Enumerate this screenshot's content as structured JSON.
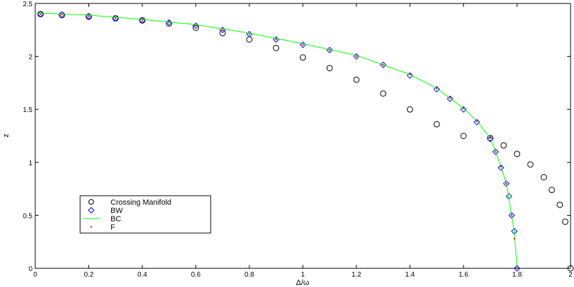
{
  "chart_data": {
    "type": "scatter",
    "xlabel": "Δ/ω",
    "ylabel": "z",
    "xlim": [
      0,
      2
    ],
    "ylim": [
      0,
      2.5
    ],
    "xticks": [
      "0",
      "0.2",
      "0.4",
      "0.6",
      "0.8",
      "1",
      "1.2",
      "1.4",
      "1.6",
      "1.8",
      "2"
    ],
    "yticks": [
      "0",
      "0.5",
      "1",
      "1.5",
      "2",
      "2.5"
    ],
    "legend_position": "bottom-left",
    "series": [
      {
        "name": "Crossing Manifold",
        "marker": "circle",
        "color": "#000000",
        "x": [
          0.02,
          0.1,
          0.2,
          0.3,
          0.4,
          0.5,
          0.6,
          0.7,
          0.8,
          0.9,
          1.0,
          1.1,
          1.2,
          1.3,
          1.4,
          1.5,
          1.6,
          1.7,
          1.75,
          1.8,
          1.85,
          1.9,
          1.93,
          1.96,
          1.98,
          2.0
        ],
        "y": [
          2.4,
          2.39,
          2.375,
          2.36,
          2.34,
          2.31,
          2.27,
          2.22,
          2.16,
          2.08,
          1.99,
          1.89,
          1.78,
          1.65,
          1.5,
          1.36,
          1.25,
          1.23,
          1.16,
          1.08,
          0.98,
          0.86,
          0.74,
          0.6,
          0.44,
          0.0
        ]
      },
      {
        "name": "BW",
        "marker": "diamond",
        "color": "#0000ff",
        "x": [
          0.02,
          0.1,
          0.2,
          0.3,
          0.4,
          0.5,
          0.6,
          0.7,
          0.8,
          0.9,
          1.0,
          1.1,
          1.2,
          1.3,
          1.4,
          1.5,
          1.55,
          1.6,
          1.65,
          1.7,
          1.72,
          1.74,
          1.76,
          1.77,
          1.78,
          1.79,
          1.8
        ],
        "y": [
          2.4,
          2.395,
          2.38,
          2.36,
          2.34,
          2.32,
          2.29,
          2.25,
          2.21,
          2.16,
          2.11,
          2.06,
          2.0,
          1.92,
          1.82,
          1.69,
          1.6,
          1.5,
          1.38,
          1.22,
          1.1,
          0.95,
          0.8,
          0.68,
          0.5,
          0.35,
          0.0
        ]
      },
      {
        "name": "BC",
        "marker": "line",
        "color": "#00ff00",
        "x": [
          0.0,
          0.2,
          0.4,
          0.6,
          0.8,
          1.0,
          1.2,
          1.4,
          1.5,
          1.6,
          1.65,
          1.7,
          1.72,
          1.74,
          1.76,
          1.78,
          1.79,
          1.8
        ],
        "y": [
          2.41,
          2.39,
          2.35,
          2.3,
          2.22,
          2.12,
          2.01,
          1.83,
          1.7,
          1.51,
          1.39,
          1.23,
          1.1,
          0.96,
          0.8,
          0.5,
          0.35,
          0.0
        ]
      },
      {
        "name": "F",
        "marker": "dot",
        "color": "#ff0000",
        "x": [
          0.02,
          0.1,
          0.2,
          0.3,
          0.4,
          0.5,
          0.6,
          0.7,
          0.8,
          0.9,
          1.0,
          1.1,
          1.2,
          1.3,
          1.4,
          1.5,
          1.55,
          1.6,
          1.65,
          1.7,
          1.72,
          1.74,
          1.76,
          1.78,
          1.79,
          1.8
        ],
        "y": [
          2.4,
          2.395,
          2.38,
          2.36,
          2.34,
          2.32,
          2.29,
          2.25,
          2.21,
          2.16,
          2.11,
          2.06,
          2.0,
          1.92,
          1.83,
          1.7,
          1.61,
          1.51,
          1.39,
          1.23,
          1.1,
          0.96,
          0.8,
          0.5,
          0.28,
          0.0
        ]
      }
    ]
  }
}
